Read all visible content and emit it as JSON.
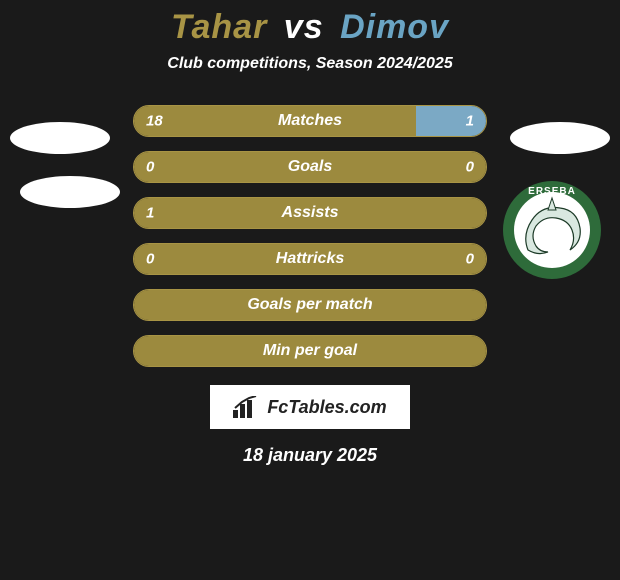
{
  "title": {
    "player1": "Tahar",
    "vs": "vs",
    "player2": "Dimov"
  },
  "subtitle": "Club competitions, Season 2024/2025",
  "colors": {
    "p1": "#a89445",
    "p2": "#6aa4c4",
    "bar_fill_left": "#9c8a3e",
    "bar_fill_right": "#7ba9c5",
    "bar_border": "#a89445",
    "background": "#1a1a1a",
    "text": "#ffffff"
  },
  "bars": {
    "track_width": 354,
    "items": [
      {
        "label": "Matches",
        "left_value": "18",
        "right_value": "1",
        "left_fill_pct": 80,
        "right_fill_pct": 20
      },
      {
        "label": "Goals",
        "left_value": "0",
        "right_value": "0",
        "left_fill_pct": 100,
        "right_fill_pct": 0
      },
      {
        "label": "Assists",
        "left_value": "1",
        "right_value": "",
        "left_fill_pct": 100,
        "right_fill_pct": 0
      },
      {
        "label": "Hattricks",
        "left_value": "0",
        "right_value": "0",
        "left_fill_pct": 100,
        "right_fill_pct": 0
      },
      {
        "label": "Goals per match",
        "left_value": "",
        "right_value": "",
        "left_fill_pct": 100,
        "right_fill_pct": 0
      },
      {
        "label": "Min per goal",
        "left_value": "",
        "right_value": "",
        "left_fill_pct": 100,
        "right_fill_pct": 0
      }
    ]
  },
  "crest": {
    "outer_color": "#2e6b3a",
    "inner_color": "#ffffff",
    "shark_color": "#d9e8e0",
    "text_top": "ERSEBA"
  },
  "fctables": {
    "label": "FcTables.com",
    "logo_color": "#222222"
  },
  "date": "18 january 2025"
}
